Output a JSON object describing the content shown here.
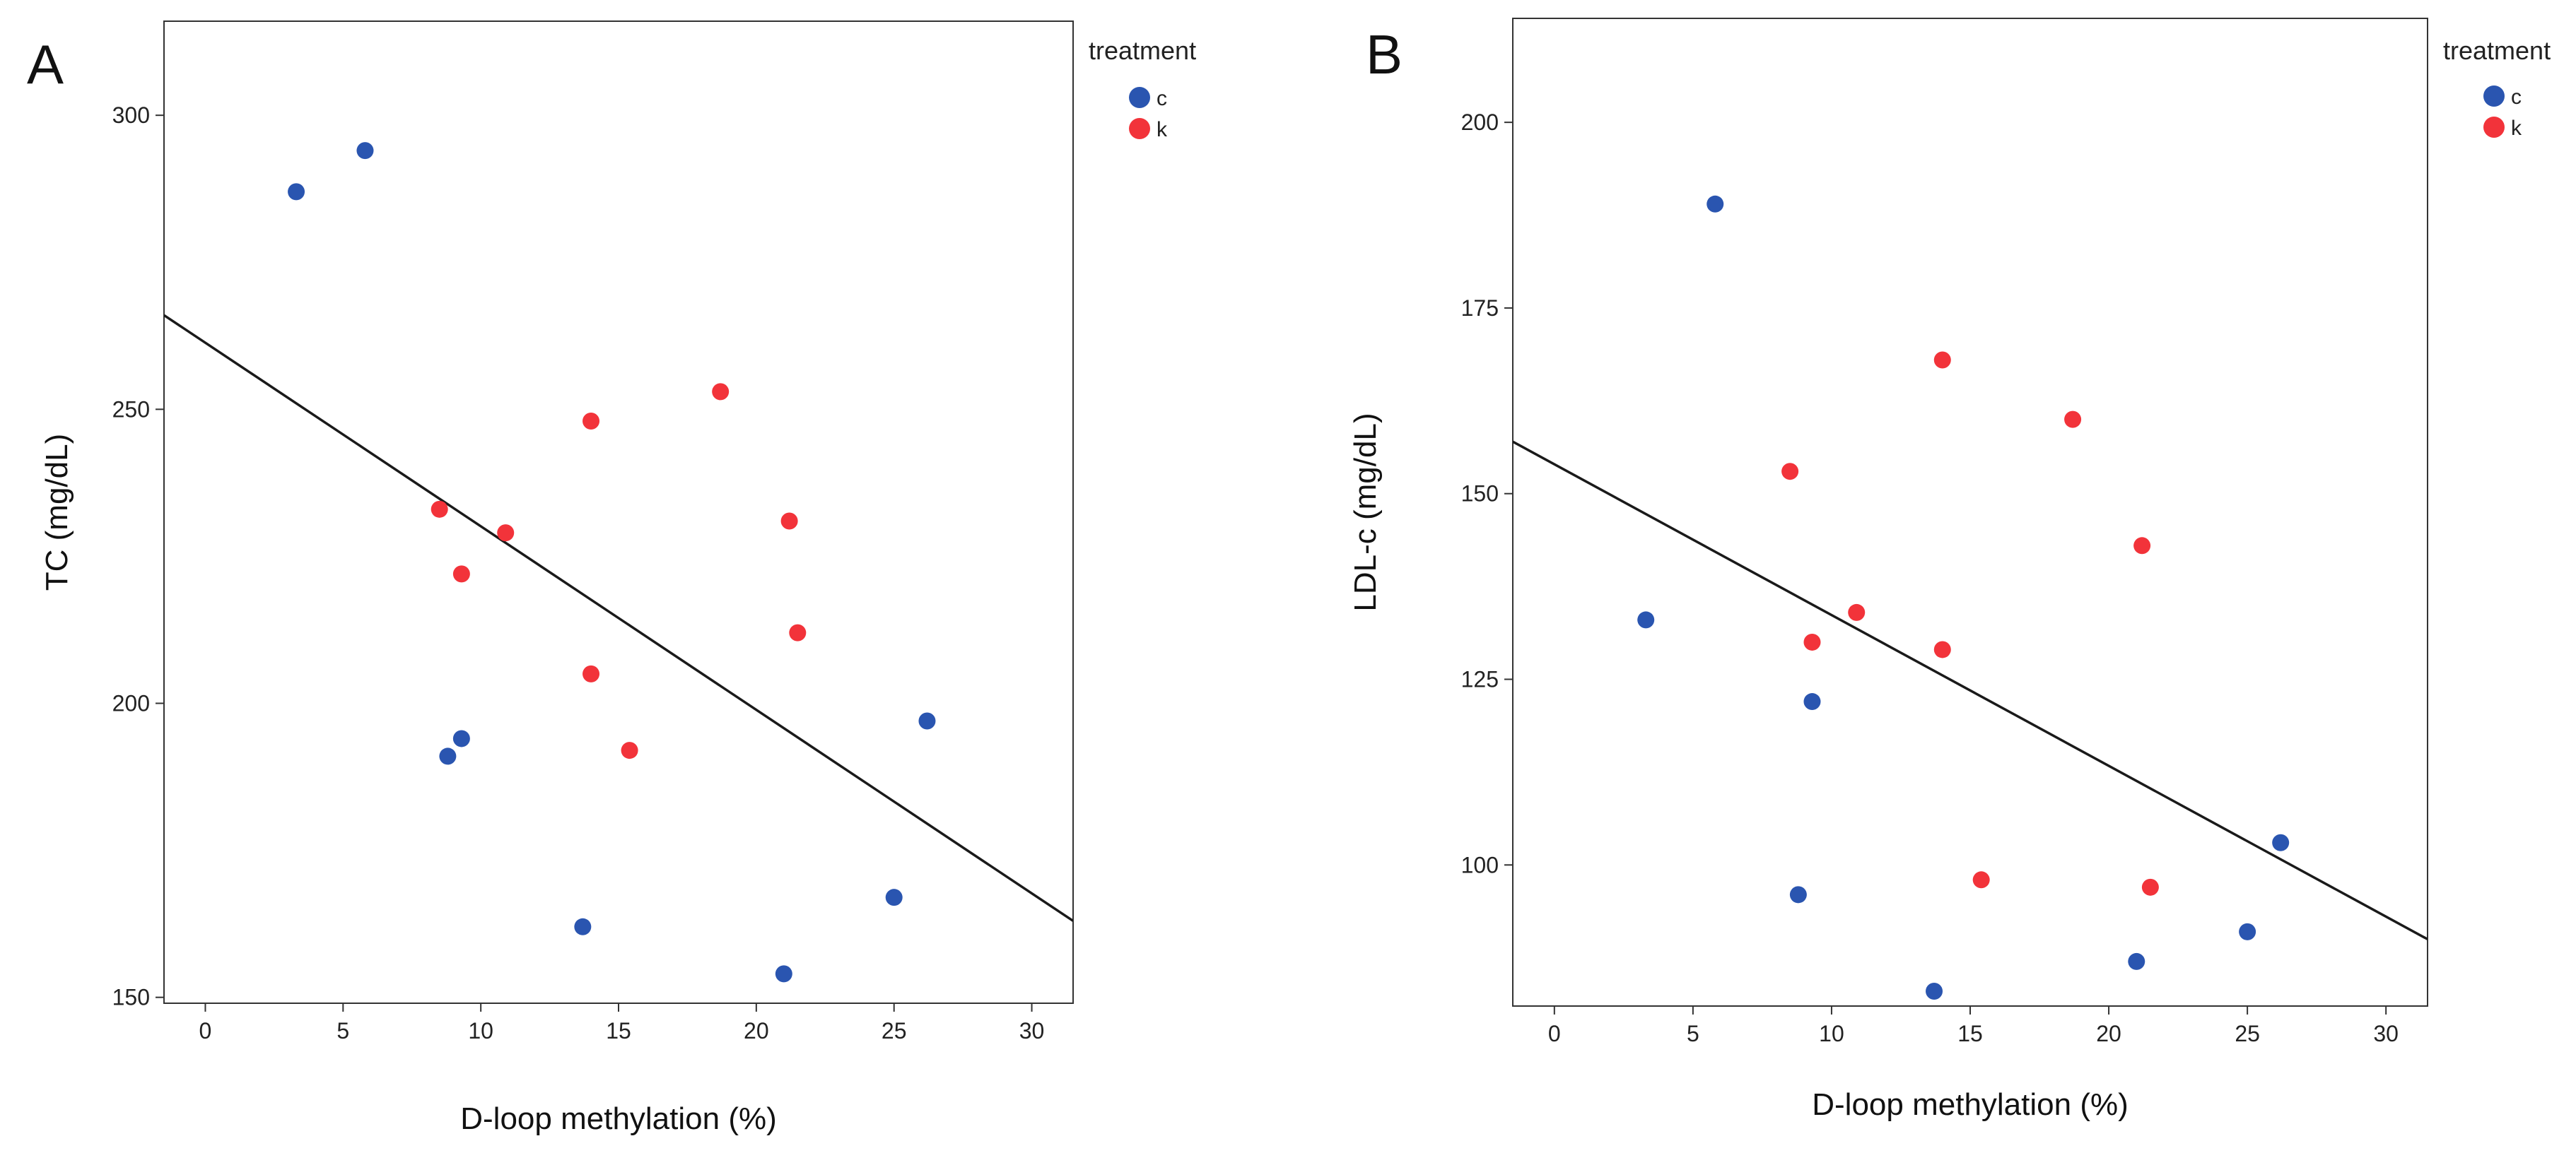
{
  "colors": {
    "c": "#2a55b0",
    "k": "#f2333a",
    "line": "#1a1a1a",
    "frame": "#333333"
  },
  "chart_data": [
    {
      "type": "scatter",
      "panel_label": "A",
      "xlabel": "D-loop methylation (%)",
      "ylabel": "TC (mg/dL)",
      "xlim": [
        -1.5,
        31.5
      ],
      "ylim": [
        149,
        316
      ],
      "xticks": [
        0,
        5,
        10,
        15,
        20,
        25,
        30
      ],
      "yticks": [
        150,
        200,
        250,
        300
      ],
      "legend": {
        "title": "treatment",
        "entries": [
          "c",
          "k"
        ],
        "position": "outside-right-top"
      },
      "series": [
        {
          "name": "c",
          "color": "#2a55b0",
          "x": [
            3.3,
            5.8,
            8.8,
            9.3,
            13.7,
            21.0,
            25.0,
            26.2
          ],
          "y": [
            287,
            294,
            191,
            194,
            162,
            154,
            167,
            197
          ]
        },
        {
          "name": "k",
          "color": "#f2333a",
          "x": [
            8.5,
            9.3,
            10.9,
            14.0,
            14.0,
            15.4,
            18.7,
            21.2,
            21.5
          ],
          "y": [
            233,
            222,
            229,
            248,
            205,
            192,
            253,
            231,
            212
          ]
        }
      ],
      "fit_line": {
        "x": [
          -1.5,
          31.5
        ],
        "y": [
          266,
          163
        ]
      }
    },
    {
      "type": "scatter",
      "panel_label": "B",
      "xlabel": "D-loop methylation (%)",
      "ylabel": "LDL-c (mg/dL)",
      "xlim": [
        -1.5,
        31.5
      ],
      "ylim": [
        81,
        214
      ],
      "xticks": [
        0,
        5,
        10,
        15,
        20,
        25,
        30
      ],
      "yticks": [
        100,
        125,
        150,
        175,
        200
      ],
      "legend": {
        "title": "treatment",
        "entries": [
          "c",
          "k"
        ],
        "position": "outside-right-top"
      },
      "series": [
        {
          "name": "c",
          "color": "#2a55b0",
          "x": [
            3.3,
            5.8,
            8.8,
            9.3,
            13.7,
            21.0,
            25.0,
            26.2
          ],
          "y": [
            133,
            189,
            96,
            122,
            83,
            87,
            91,
            103
          ]
        },
        {
          "name": "k",
          "color": "#f2333a",
          "x": [
            8.5,
            9.3,
            10.9,
            14.0,
            14.0,
            15.4,
            18.7,
            21.2,
            21.5
          ],
          "y": [
            153,
            130,
            134,
            168,
            129,
            98,
            160,
            143,
            97
          ]
        }
      ],
      "fit_line": {
        "x": [
          -1.5,
          31.5
        ],
        "y": [
          157,
          90
        ]
      }
    }
  ]
}
